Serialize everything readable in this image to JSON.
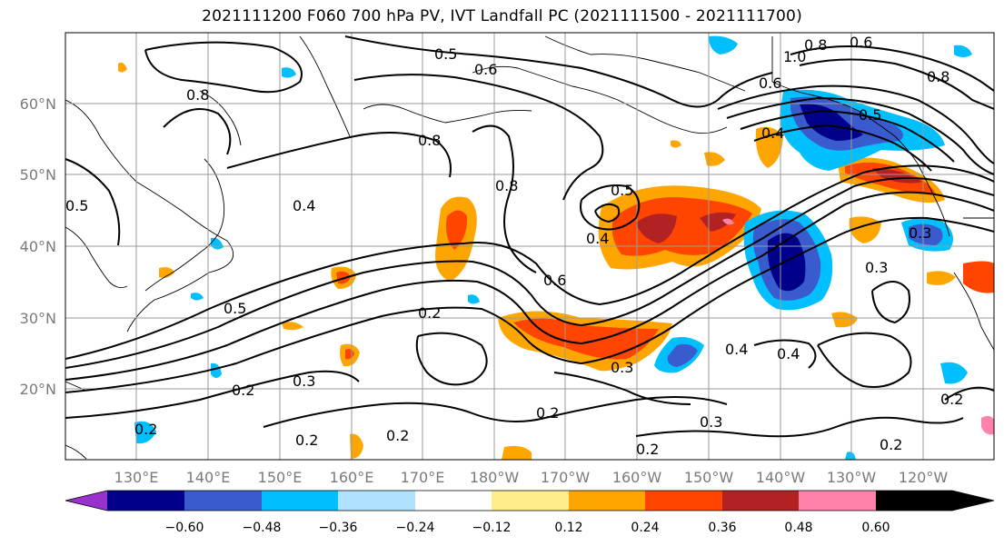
{
  "title": "2021111200 F060 700 hPa PV, IVT Landfall PC (2021111500 - 2021111700)",
  "lat_labels": [
    "60°N",
    "50°N",
    "40°N",
    "30°N",
    "20°N"
  ],
  "lon_labels": [
    "130°E",
    "140°E",
    "150°E",
    "160°E",
    "170°E",
    "180°W",
    "170°W",
    "160°W",
    "150°W",
    "140°W",
    "130°W",
    "120°W"
  ],
  "colorbar": {
    "colors": [
      "#9932cc",
      "#00008b",
      "#3a5bcd",
      "#00bfff",
      "#b0e2ff",
      "#ffffff",
      "#ffec8b",
      "#ffa500",
      "#ff4500",
      "#b22222",
      "#ff82ab"
    ],
    "tick_labels": [
      "−0.60",
      "−0.48",
      "−0.36",
      "−0.24",
      "−0.12",
      "0.12",
      "0.24",
      "0.36",
      "0.48",
      "0.60"
    ]
  },
  "contour_labels": [
    "0.5",
    "0.6",
    "0.8",
    "0.6",
    "1.0",
    "0.8",
    "0.8",
    "0.6",
    "0.5",
    "0.4",
    "0.5",
    "0.4",
    "0.6",
    "0.5",
    "0.3",
    "0.2",
    "0.3",
    "0.2",
    "0.2",
    "0.2",
    "0.2",
    "0.2",
    "0.2",
    "0.4",
    "0.4",
    "0.3",
    "0.3",
    "0.8",
    "0.8",
    "0.5",
    "0.2",
    "0.2",
    "0.4",
    "0.3"
  ]
}
